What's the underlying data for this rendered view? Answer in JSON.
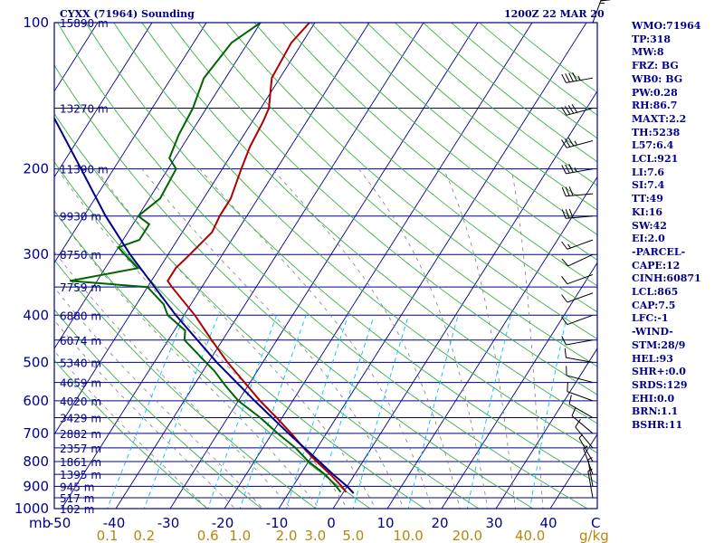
{
  "title_left": "CYXX (71964) Sounding",
  "title_right": "1200Z 22 MAR 20",
  "units": {
    "pressure": "mb",
    "mixing_ratio": "g/kg",
    "temp_end": "C"
  },
  "colors": {
    "frame": "#00008b",
    "isobar": "#00008b",
    "isotherm": "#00008b",
    "dry_adiabat": "#3cb043",
    "moist_adiabat": "#808080",
    "mixing_ratio": "#00bfff",
    "temperature": "#b00000",
    "dewpoint": "#006400",
    "parcel": "#00008b",
    "wind": "#000000"
  },
  "indices": [
    "WMO:71964",
    "TP:318",
    "MW:8",
    "FRZ: BG",
    "WB0: BG",
    "PW:0.28",
    "RH:86.7",
    "MAXT:2.2",
    "TH:5238",
    "L57:6.4",
    "LCL:921",
    "LI:7.6",
    "SI:7.4",
    "TT:49",
    "KI:16",
    "SW:42",
    "EI:2.0",
    "-PARCEL-",
    "CAPE:12",
    "CINH:60871",
    "LCL:865",
    "CAP:7.5",
    "LFC:-1",
    "-WIND-",
    "STM:28/9",
    "HEL:93",
    "SHR+:0.0",
    "SRDS:129",
    "EHI:0.0",
    "BRN:1.1",
    "BSHR:11"
  ],
  "chart_data": {
    "type": "line",
    "subtype": "skew-t log-p",
    "xlim": [
      -50,
      45
    ],
    "ylim": [
      1000,
      100
    ],
    "y_scale": "log",
    "pressure_tick_labels": [
      "100",
      "200",
      "300",
      "400",
      "500",
      "600",
      "700",
      "800",
      "900",
      "1000"
    ],
    "temp_tick_labels": [
      "-50",
      "-40",
      "-30",
      "-20",
      "-10",
      "0",
      "10",
      "20",
      "30",
      "40"
    ],
    "mixing_ratio_labels": [
      "0.1",
      "0.2",
      "0.6",
      "1.0",
      "2.0",
      "3.0",
      "5.0",
      "10.0",
      "20.0",
      "40.0"
    ],
    "height_labels": [
      {
        "p": 100,
        "label": "15890 m"
      },
      {
        "p": 150,
        "label": "13270 m"
      },
      {
        "p": 200,
        "label": "11390 m"
      },
      {
        "p": 250,
        "label": "9930 m"
      },
      {
        "p": 300,
        "label": "8750 m"
      },
      {
        "p": 350,
        "label": "7759 m"
      },
      {
        "p": 400,
        "label": "6880 m"
      },
      {
        "p": 450,
        "label": "6074 m"
      },
      {
        "p": 500,
        "label": "5340 m"
      },
      {
        "p": 550,
        "label": "4659 m"
      },
      {
        "p": 600,
        "label": "4020 m"
      },
      {
        "p": 650,
        "label": "3429 m"
      },
      {
        "p": 700,
        "label": "2882 m"
      },
      {
        "p": 750,
        "label": "2357 m"
      },
      {
        "p": 800,
        "label": "1861 m"
      },
      {
        "p": 850,
        "label": "1395 m"
      },
      {
        "p": 900,
        "label": "945 m"
      },
      {
        "p": 950,
        "label": "517 m"
      },
      {
        "p": 1000,
        "label": "102 m"
      }
    ],
    "series": [
      {
        "role": "temperature",
        "p": [
          925,
          900,
          850,
          800,
          750,
          700,
          650,
          600,
          550,
          500,
          450,
          400,
          350,
          340,
          320,
          300,
          270,
          250,
          230,
          200,
          180,
          160,
          150,
          130,
          110,
          100
        ],
        "t": [
          0.5,
          -1.0,
          -4.5,
          -8.5,
          -12.5,
          -16.5,
          -21.0,
          -26.0,
          -31.0,
          -36.5,
          -42.0,
          -48.0,
          -55.5,
          -57.0,
          -57.0,
          -56.0,
          -54.5,
          -55.0,
          -55.0,
          -56.5,
          -57.5,
          -58.0,
          -58.5,
          -61.5,
          -62.0,
          -61.0
        ]
      },
      {
        "role": "dewpoint",
        "p": [
          925,
          900,
          850,
          800,
          750,
          700,
          650,
          600,
          560,
          520,
          500,
          450,
          430,
          400,
          380,
          350,
          340,
          320,
          300,
          290,
          280,
          260,
          250,
          230,
          200,
          190,
          170,
          150,
          130,
          110,
          100
        ],
        "t": [
          -0.5,
          -2.0,
          -5.5,
          -10.0,
          -14.0,
          -19.0,
          -24.0,
          -30.0,
          -34.0,
          -38.0,
          -40.5,
          -47.0,
          -48.0,
          -53.0,
          -55.0,
          -60.0,
          -75.0,
          -64.0,
          -68.0,
          -70.0,
          -67.0,
          -67.0,
          -70.0,
          -68.0,
          -68.5,
          -71.0,
          -72.0,
          -72.5,
          -74.0,
          -73.0,
          -70.0
        ]
      },
      {
        "role": "parcel",
        "p": [
          930,
          900,
          850,
          800,
          700,
          600,
          500,
          400,
          300,
          250,
          200,
          150,
          110
        ],
        "t": [
          2.0,
          0.0,
          -4.0,
          -8.0,
          -17.0,
          -27.0,
          -38.5,
          -51.5,
          -67.0,
          -76.0,
          -86.0,
          -99.0,
          -111.0
        ]
      }
    ],
    "wind_barbs": [
      {
        "p": 100,
        "dir": 20,
        "speed": 55
      },
      {
        "p": 130,
        "dir": 260,
        "speed": 45
      },
      {
        "p": 150,
        "dir": 255,
        "speed": 40
      },
      {
        "p": 175,
        "dir": 255,
        "speed": 35
      },
      {
        "p": 200,
        "dir": 260,
        "speed": 35
      },
      {
        "p": 225,
        "dir": 265,
        "speed": 30
      },
      {
        "p": 250,
        "dir": 265,
        "speed": 30
      },
      {
        "p": 280,
        "dir": 250,
        "speed": 15
      },
      {
        "p": 300,
        "dir": 245,
        "speed": 10
      },
      {
        "p": 330,
        "dir": 250,
        "speed": 10
      },
      {
        "p": 360,
        "dir": 250,
        "speed": 10
      },
      {
        "p": 400,
        "dir": 250,
        "speed": 10
      },
      {
        "p": 450,
        "dir": 260,
        "speed": 10
      },
      {
        "p": 500,
        "dir": 280,
        "speed": 10
      },
      {
        "p": 550,
        "dir": 285,
        "speed": 10
      },
      {
        "p": 600,
        "dir": 290,
        "speed": 10
      },
      {
        "p": 650,
        "dir": 300,
        "speed": 10
      },
      {
        "p": 700,
        "dir": 310,
        "speed": 10
      },
      {
        "p": 750,
        "dir": 320,
        "speed": 10
      },
      {
        "p": 800,
        "dir": 330,
        "speed": 5
      },
      {
        "p": 850,
        "dir": 340,
        "speed": 5
      },
      {
        "p": 900,
        "dir": 350,
        "speed": 5
      },
      {
        "p": 950,
        "dir": 350,
        "speed": 5
      }
    ],
    "grid": true
  }
}
